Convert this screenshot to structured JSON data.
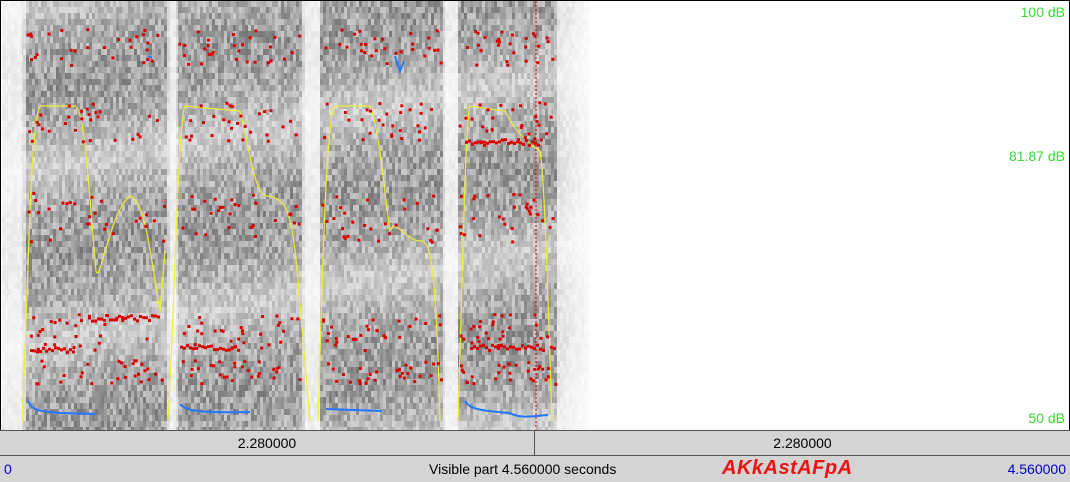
{
  "spectrogram": {
    "db_labels": {
      "top": "100 dB",
      "middle": "81.87 dB",
      "bottom": "50 dB"
    },
    "colors": {
      "formants": "#dd0000",
      "intensity": "#eeee33",
      "pitch": "#2277ff",
      "db_labels": "#33dd33"
    }
  },
  "time_bar": {
    "left_segment": "2.280000",
    "right_segment": "2.280000"
  },
  "status_bar": {
    "start_time": "0",
    "visible_part": "Visible part 4.560000 seconds",
    "annotation": "AKkAstAFpA",
    "end_time": "4.560000"
  }
}
